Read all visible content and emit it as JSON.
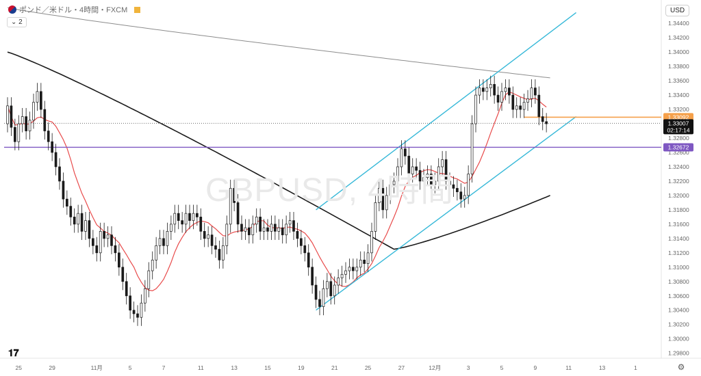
{
  "header": {
    "title": "ポンド／米ドル・4時間・FXCM",
    "indicator_count": "2",
    "currency": "USD",
    "watermark": "GBPUSD, 4時間"
  },
  "price_tags": {
    "orange": "1.33092",
    "current": "1.33007",
    "countdown": "02:17:14",
    "purple": "1.32672"
  },
  "colors": {
    "orange": "#f5a04a",
    "purple": "#7e57c2",
    "channel": "#35b8d8",
    "ma_red": "#e84a4a",
    "ma_black": "#1a1a1a",
    "ma_gray": "#8c8c8c"
  },
  "chart_data": {
    "type": "candlestick",
    "title": "ポンド／米ドル・4時間・FXCM",
    "y_ticks": [
      "1.34400",
      "1.34200",
      "1.34000",
      "1.33800",
      "1.33600",
      "1.33400",
      "1.33200",
      "1.32800",
      "1.32600",
      "1.32400",
      "1.32200",
      "1.32000",
      "1.31800",
      "1.31600",
      "1.31400",
      "1.31200",
      "1.31000",
      "1.30800",
      "1.30600",
      "1.30400",
      "1.30200",
      "1.30000",
      "1.29800"
    ],
    "x_ticks": [
      "25",
      "29",
      "11月",
      "5",
      "7",
      "11",
      "13",
      "15",
      "19",
      "21",
      "25",
      "27",
      "12月",
      "3",
      "5",
      "9",
      "11",
      "13",
      "1"
    ],
    "ylim": [
      1.2973,
      1.3465
    ],
    "xlim": [
      0,
      175
    ],
    "x_tick_indices": [
      3,
      12,
      24,
      33,
      42,
      52,
      61,
      70,
      79,
      88,
      97,
      106,
      115,
      124,
      133,
      142,
      151,
      160,
      169
    ],
    "horizontal_lines": [
      {
        "value": 1.33092,
        "color": "#f5a04a"
      },
      {
        "value": 1.32672,
        "color": "#7e57c2"
      },
      {
        "value": 1.33007,
        "style": "dotted"
      }
    ],
    "channel": {
      "lower": [
        [
          83,
          1.304
        ],
        [
          153,
          1.331
        ]
      ],
      "upper": [
        [
          83,
          1.318
        ],
        [
          153,
          1.3455
        ]
      ]
    },
    "closes": [
      1.3325,
      1.3295,
      1.3275,
      1.33,
      1.331,
      1.329,
      1.3305,
      1.333,
      1.3345,
      1.332,
      1.329,
      1.3275,
      1.326,
      1.324,
      1.322,
      1.3195,
      1.3185,
      1.317,
      1.316,
      1.3175,
      1.315,
      1.3165,
      1.314,
      1.313,
      1.312,
      1.315,
      1.314,
      1.3145,
      1.313,
      1.312,
      1.31,
      1.308,
      1.306,
      1.304,
      1.3035,
      1.303,
      1.305,
      1.307,
      1.3095,
      1.311,
      1.313,
      1.314,
      1.313,
      1.315,
      1.316,
      1.3175,
      1.3165,
      1.316,
      1.3175,
      1.3165,
      1.3175,
      1.317,
      1.315,
      1.314,
      1.3145,
      1.313,
      1.3125,
      1.311,
      1.313,
      1.316,
      1.321,
      1.319,
      1.316,
      1.315,
      1.3155,
      1.3145,
      1.316,
      1.317,
      1.315,
      1.3155,
      1.315,
      1.316,
      1.315,
      1.3155,
      1.3145,
      1.316,
      1.3165,
      1.315,
      1.314,
      1.313,
      1.312,
      1.31,
      1.3075,
      1.3055,
      1.3045,
      1.307,
      1.308,
      1.306,
      1.3075,
      1.3085,
      1.309,
      1.3095,
      1.31,
      1.3095,
      1.31,
      1.311,
      1.3105,
      1.312,
      1.315,
      1.319,
      1.321,
      1.318,
      1.32,
      1.3215,
      1.322,
      1.324,
      1.3265,
      1.3255,
      1.323,
      1.324,
      1.3235,
      1.322,
      1.3225,
      1.323,
      1.3215,
      1.322,
      1.324,
      1.325,
      1.322,
      1.3215,
      1.321,
      1.3205,
      1.3195,
      1.32,
      1.323,
      1.33,
      1.334,
      1.335,
      1.3345,
      1.335,
      1.3355,
      1.334,
      1.333,
      1.3345,
      1.335,
      1.334,
      1.332,
      1.3325,
      1.332,
      1.333,
      1.3335,
      1.335,
      1.334,
      1.331,
      1.3303,
      1.33
    ],
    "opens": [
      1.33,
      1.3325,
      1.3295,
      1.3275,
      1.33,
      1.331,
      1.329,
      1.3305,
      1.333,
      1.3345,
      1.332,
      1.329,
      1.3275,
      1.326,
      1.324,
      1.322,
      1.3195,
      1.3185,
      1.317,
      1.316,
      1.3175,
      1.315,
      1.3165,
      1.314,
      1.313,
      1.312,
      1.315,
      1.314,
      1.3145,
      1.313,
      1.312,
      1.31,
      1.308,
      1.306,
      1.304,
      1.3035,
      1.303,
      1.305,
      1.307,
      1.3095,
      1.311,
      1.313,
      1.314,
      1.313,
      1.315,
      1.316,
      1.3175,
      1.3165,
      1.316,
      1.3175,
      1.3165,
      1.3175,
      1.317,
      1.315,
      1.314,
      1.3145,
      1.313,
      1.3125,
      1.311,
      1.313,
      1.316,
      1.321,
      1.319,
      1.316,
      1.315,
      1.3155,
      1.3145,
      1.316,
      1.317,
      1.315,
      1.3155,
      1.315,
      1.316,
      1.315,
      1.3155,
      1.3145,
      1.316,
      1.3165,
      1.315,
      1.314,
      1.313,
      1.312,
      1.31,
      1.3075,
      1.3055,
      1.3045,
      1.307,
      1.308,
      1.306,
      1.3075,
      1.3085,
      1.309,
      1.3095,
      1.31,
      1.3095,
      1.31,
      1.311,
      1.3105,
      1.312,
      1.315,
      1.319,
      1.321,
      1.318,
      1.32,
      1.3215,
      1.322,
      1.324,
      1.3265,
      1.3255,
      1.323,
      1.324,
      1.3235,
      1.322,
      1.3225,
      1.323,
      1.3215,
      1.322,
      1.324,
      1.325,
      1.322,
      1.3215,
      1.321,
      1.3205,
      1.3195,
      1.32,
      1.323,
      1.33,
      1.334,
      1.335,
      1.3345,
      1.335,
      1.3355,
      1.334,
      1.333,
      1.3345,
      1.335,
      1.334,
      1.332,
      1.3325,
      1.332,
      1.333,
      1.3335,
      1.335,
      1.334,
      1.331,
      1.3303
    ]
  }
}
